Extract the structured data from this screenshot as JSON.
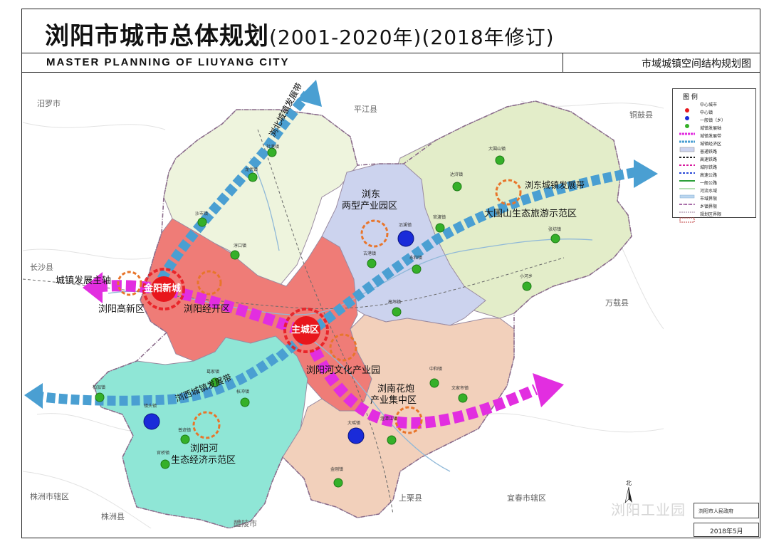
{
  "header": {
    "title_main": "浏阳市城市总体规划",
    "title_years": "(2001-2020年)(2018年修订)",
    "title_en": "MASTER PLANNING OF LIUYANG CITY",
    "map_name": "市域城镇空间结构规划图"
  },
  "colors": {
    "north_district": "#eef4dd",
    "east_district": "#e3edc9",
    "liudong_park": "#ccd3ee",
    "central_district": "#ef7c77",
    "west_district": "#8fe6d6",
    "south_district": "#f2d0bb",
    "axis_blue": "#4a9fd2",
    "axis_magenta": "#e22ee0",
    "center_red": "#e8161c",
    "center_blue": "#1a2bd9",
    "town_green": "#35b029",
    "ring_orange": "#e8752b"
  },
  "counties": {
    "miluo": "汨罗市",
    "pingjiang": "平江县",
    "tonggu": "铜鼓县",
    "changsha": "长沙县",
    "wanzai": "万载县",
    "zhuzhou_urban": "株洲市辖区",
    "zhuzhou_county": "株洲县",
    "liling": "醴陵市",
    "shangli": "上栗县",
    "yichun": "宜春市辖区"
  },
  "centers": {
    "main": "主城区",
    "jinyang": "金阳新城"
  },
  "zones": {
    "gaoxin": "浏阳高新区",
    "jingkai": "浏阳经开区",
    "liudong_1": "浏东",
    "liudong_2": "两型产业园区",
    "dawei": "大围山生态旅游示范区",
    "wenhua": "浏阳河文化产业园",
    "huapao_1": "浏南花炮",
    "huapao_2": "产业集中区",
    "shengtai_1": "浏阳河",
    "shengtai_2": "生态经济示范区"
  },
  "axes": {
    "north": "浏北城镇发展带",
    "east": "浏东城镇发展带",
    "west": "浏西城镇发展带",
    "main": "城镇发展主轴"
  },
  "towns": [
    "社港镇",
    "龙伏镇",
    "沙市镇",
    "淳口镇",
    "大围山镇",
    "达浒镇",
    "张坊镇",
    "官渡镇",
    "沿溪镇",
    "古港镇",
    "永和镇",
    "高坪镇",
    "小河乡",
    "中和镇",
    "文家市镇",
    "澄潭江镇",
    "大瑶镇",
    "金刚镇",
    "柏加镇",
    "镇头镇",
    "葛家镇",
    "枨冲镇",
    "普迹镇",
    "官桥镇"
  ],
  "legend": {
    "title": "图 例",
    "items": [
      "中心城市",
      "中心镇",
      "一般镇（乡）",
      "城镇发展轴",
      "城镇发展带",
      "城镇经济区",
      "普通铁路",
      "高速铁路",
      "城际铁路",
      "高速公路",
      "一般公路",
      "河流水域",
      "市域界限",
      "乡镇界限",
      "规划区界限"
    ]
  },
  "footer": {
    "signature": "浏阳市人民政府",
    "watermark": "浏阳工业园",
    "date": "2018年5月"
  }
}
